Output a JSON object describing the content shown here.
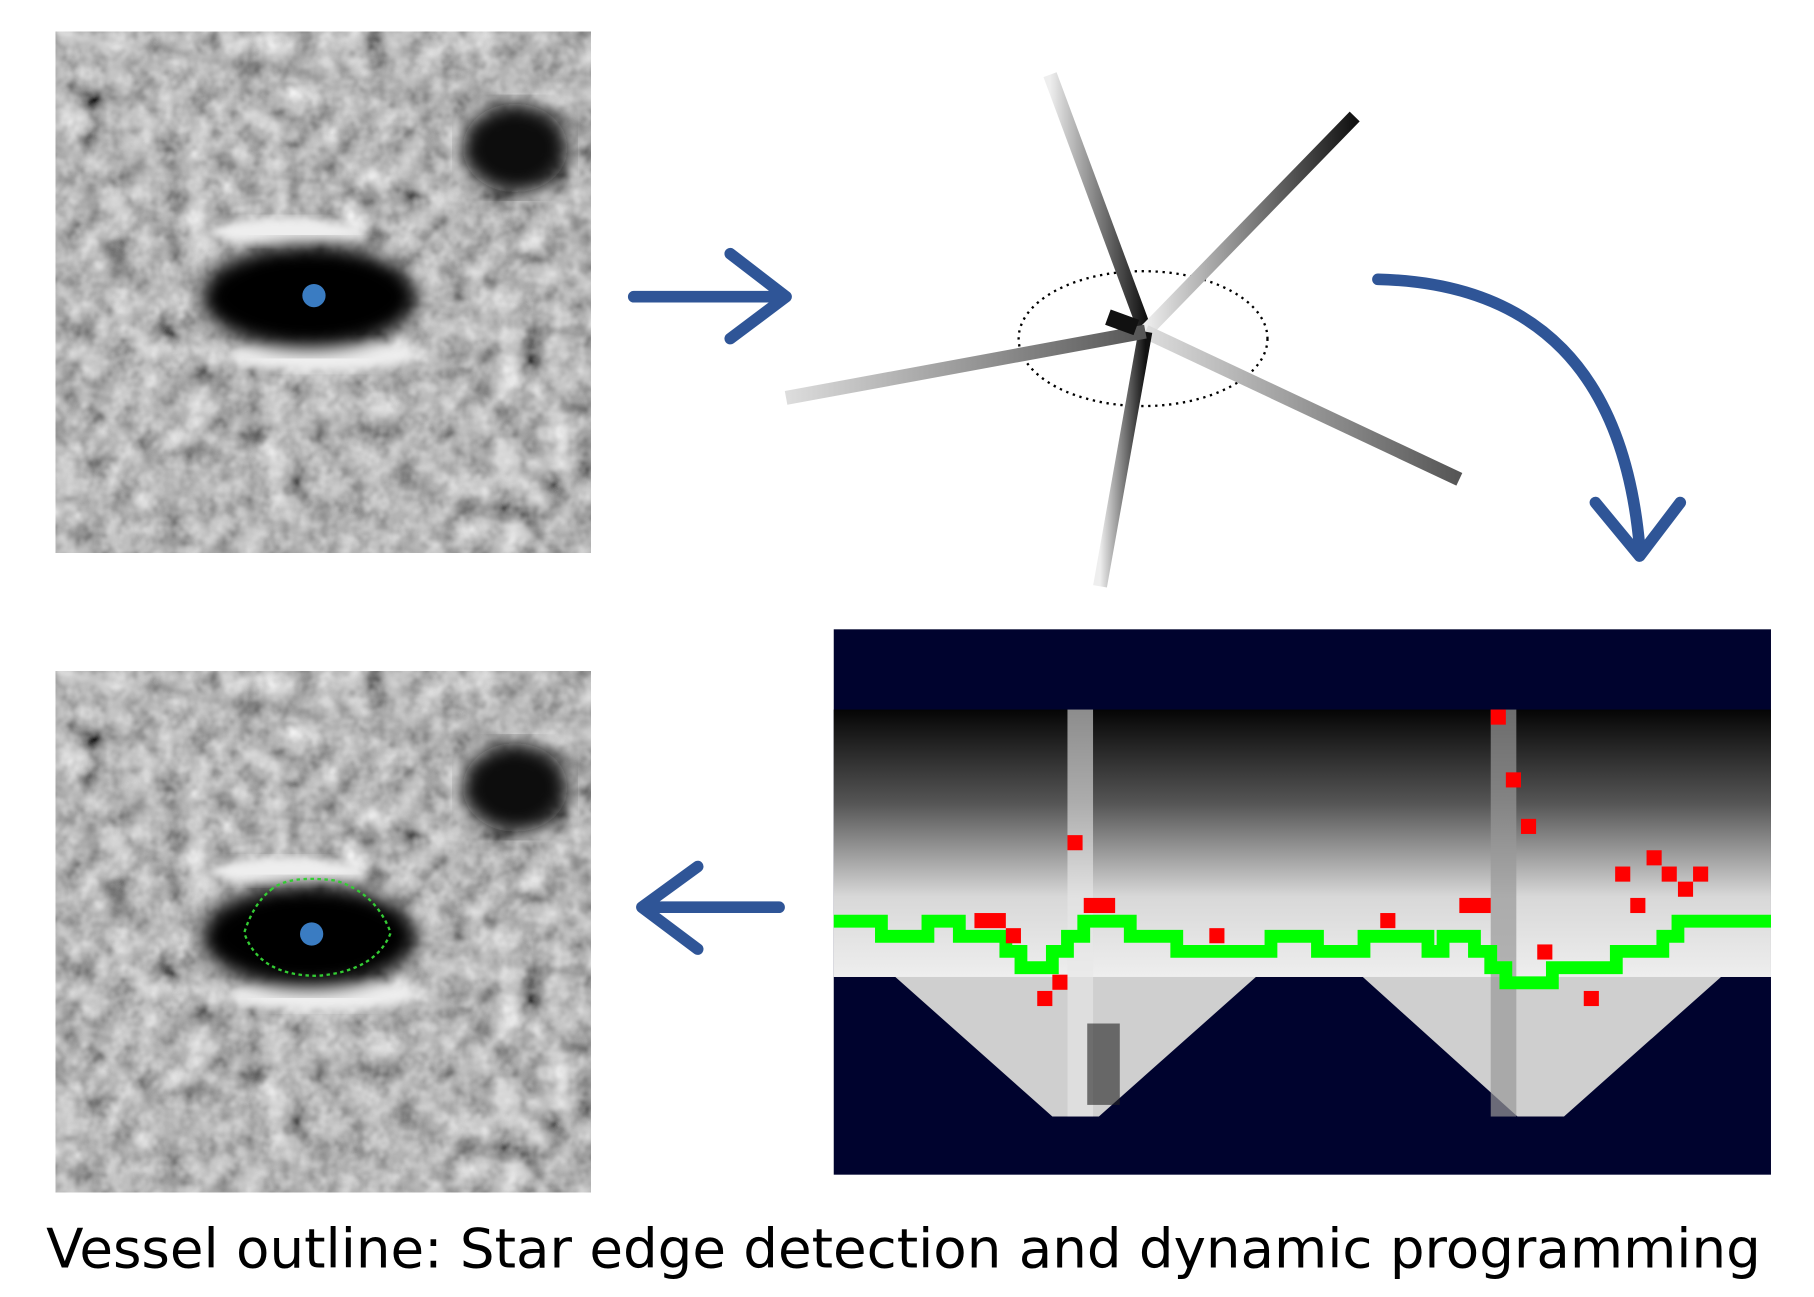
{
  "caption": "Vessel outline: Star edge detection and dynamic programming"
}
